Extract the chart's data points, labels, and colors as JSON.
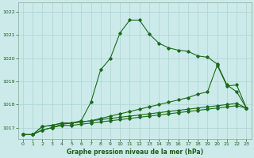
{
  "title": "Graphe pression niveau de la mer (hPa)",
  "background_color": "#cceaea",
  "grid_color": "#aad4d4",
  "line_color": "#1a6b1a",
  "xlim": [
    -0.5,
    23.5
  ],
  "ylim": [
    1016.5,
    1022.4
  ],
  "xticks": [
    0,
    1,
    2,
    3,
    4,
    5,
    6,
    7,
    8,
    9,
    10,
    11,
    12,
    13,
    14,
    15,
    16,
    17,
    18,
    19,
    20,
    21,
    22,
    23
  ],
  "yticks": [
    1017,
    1018,
    1019,
    1020,
    1021,
    1022
  ],
  "line1_x": [
    0,
    1,
    2,
    3,
    4,
    5,
    6,
    7,
    8,
    9,
    10,
    11,
    12,
    13,
    14,
    15,
    16,
    17,
    18,
    19,
    20,
    21,
    22,
    23
  ],
  "line1_y": [
    1016.7,
    1016.7,
    1016.9,
    1017.0,
    1017.15,
    1017.2,
    1017.3,
    1018.1,
    1019.5,
    1020.0,
    1021.1,
    1021.65,
    1021.65,
    1021.05,
    1020.65,
    1020.45,
    1020.35,
    1020.3,
    1020.1,
    1020.05,
    1019.75,
    1018.85,
    1018.55,
    1017.85
  ],
  "line2_x": [
    0,
    1,
    2,
    3,
    4,
    5,
    6,
    7,
    8,
    9,
    10,
    11,
    12,
    13,
    14,
    15,
    16,
    17,
    18,
    19,
    20,
    21,
    22,
    23
  ],
  "line2_y": [
    1016.7,
    1016.7,
    1017.05,
    1017.1,
    1017.2,
    1017.2,
    1017.25,
    1017.3,
    1017.4,
    1017.5,
    1017.6,
    1017.7,
    1017.8,
    1017.9,
    1018.0,
    1018.1,
    1018.2,
    1018.3,
    1018.45,
    1018.55,
    1019.7,
    1018.8,
    1018.85,
    1017.85
  ],
  "line3_x": [
    0,
    1,
    2,
    3,
    4,
    5,
    6,
    7,
    8,
    9,
    10,
    11,
    12,
    13,
    14,
    15,
    16,
    17,
    18,
    19,
    20,
    21,
    22,
    23
  ],
  "line3_y": [
    1016.7,
    1016.7,
    1017.05,
    1017.1,
    1017.2,
    1017.2,
    1017.25,
    1017.3,
    1017.35,
    1017.4,
    1017.45,
    1017.5,
    1017.55,
    1017.6,
    1017.65,
    1017.7,
    1017.75,
    1017.8,
    1017.85,
    1017.9,
    1017.95,
    1018.0,
    1018.05,
    1017.85
  ],
  "line4_x": [
    0,
    1,
    2,
    3,
    4,
    5,
    6,
    7,
    8,
    9,
    10,
    11,
    12,
    13,
    14,
    15,
    16,
    17,
    18,
    19,
    20,
    21,
    22,
    23
  ],
  "line4_y": [
    1016.7,
    1016.7,
    1016.9,
    1017.0,
    1017.1,
    1017.1,
    1017.15,
    1017.2,
    1017.25,
    1017.3,
    1017.35,
    1017.4,
    1017.45,
    1017.5,
    1017.55,
    1017.6,
    1017.65,
    1017.7,
    1017.75,
    1017.8,
    1017.85,
    1017.9,
    1017.95,
    1017.85
  ]
}
